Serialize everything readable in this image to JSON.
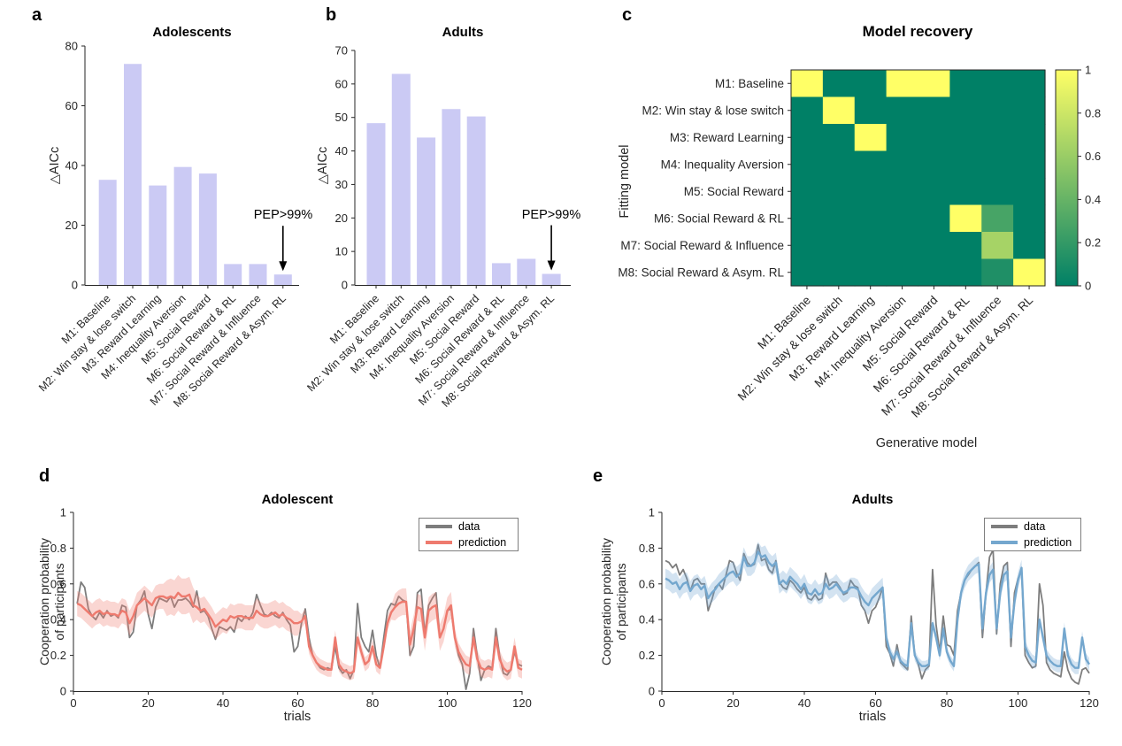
{
  "figure": {
    "panels": {
      "a": {
        "letter": "a"
      },
      "b": {
        "letter": "b"
      },
      "c": {
        "letter": "c"
      },
      "d": {
        "letter": "d"
      },
      "e": {
        "letter": "e"
      }
    },
    "colors": {
      "bar_fill": "#cbcaf4",
      "axis": "#262626",
      "data_gray": "#7d7d7d",
      "prediction_red": "#ee7a6e",
      "prediction_blue": "#74a7ce",
      "band_red": "rgba(240,130,118,0.33)",
      "band_blue": "rgba(120,170,212,0.33)",
      "heatmap_low": "#008066",
      "heatmap_high": "#ffff66"
    }
  },
  "chart_data": [
    {
      "id": "a",
      "type": "bar",
      "title": "Adolescents",
      "ylabel": "△AICc",
      "categories": [
        "M1: Baseline",
        "M2: Win stay & lose switch",
        "M3: Reward Learning",
        "M4: Inequality Aversion",
        "M5: Social Reward",
        "M6: Social Reward & RL",
        "M7: Social Reward & Influence",
        "M8: Social Reward & Asym. RL"
      ],
      "values": [
        35.2,
        74,
        33.3,
        39.5,
        37.3,
        7,
        7,
        3.5
      ],
      "ylim": [
        0,
        80
      ],
      "yticks": [
        0,
        20,
        40,
        60,
        80
      ],
      "bar_color": "#cbcaf4",
      "annotation": {
        "text": "PEP>99%",
        "target_index": 7
      }
    },
    {
      "id": "b",
      "type": "bar",
      "title": "Adults",
      "ylabel": "△AICc",
      "categories": [
        "M1: Baseline",
        "M2: Win stay & lose switch",
        "M3: Reward Learning",
        "M4: Inequality Aversion",
        "M5: Social Reward",
        "M6: Social Reward & RL",
        "M7: Social Reward & Influence",
        "M8: Social Reward & Asym. RL"
      ],
      "values": [
        48.3,
        63,
        44,
        52.5,
        50.3,
        6.5,
        7.8,
        3.3
      ],
      "ylim": [
        0,
        70
      ],
      "yticks": [
        0,
        10,
        20,
        30,
        40,
        50,
        60,
        70
      ],
      "bar_color": "#cbcaf4",
      "annotation": {
        "text": "PEP>99%",
        "target_index": 7
      }
    },
    {
      "id": "c",
      "type": "heatmap",
      "title": "Model recovery",
      "ylabel": "Fitting model",
      "xlabel": "Generative model",
      "rows": [
        "M1: Baseline",
        "M2: Win stay & lose switch",
        "M3: Reward Learning",
        "M4: Inequality Aversion",
        "M5: Social Reward",
        "M6: Social Reward & RL",
        "M7: Social Reward & Influence",
        "M8: Social Reward & Asym. RL"
      ],
      "cols": [
        "M1: Baseline",
        "M2: Win stay & lose switch",
        "M3: Reward Learning",
        "M4: Inequality Aversion",
        "M5: Social Reward",
        "M6: Social Reward & RL",
        "M7: Social Reward & Influence",
        "M8: Social Reward & Asym. RL"
      ],
      "matrix": [
        [
          1,
          0,
          0,
          1,
          1,
          0,
          0,
          0
        ],
        [
          0,
          1,
          0,
          0,
          0,
          0,
          0,
          0
        ],
        [
          0,
          0,
          1,
          0,
          0,
          0,
          0,
          0
        ],
        [
          0,
          0,
          0,
          0,
          0,
          0,
          0,
          0
        ],
        [
          0,
          0,
          0,
          0,
          0,
          0,
          0,
          0
        ],
        [
          0,
          0,
          0,
          0,
          0,
          1,
          0.28,
          0
        ],
        [
          0,
          0,
          0,
          0,
          0,
          0,
          0.65,
          0
        ],
        [
          0,
          0,
          0,
          0,
          0,
          0,
          0.12,
          1
        ]
      ],
      "colorbar": {
        "min": 0,
        "max": 1,
        "ticks": [
          0,
          0.2,
          0.4,
          0.6,
          0.8,
          1
        ],
        "colormap": "summer"
      }
    },
    {
      "id": "d",
      "type": "line",
      "title": "Adolescent",
      "xlabel": "trials",
      "ylabel": "Cooperation probability\nof participants",
      "xlim": [
        0,
        120
      ],
      "ylim": [
        0,
        1
      ],
      "xticks": [
        0,
        20,
        40,
        60,
        80,
        100,
        120
      ],
      "yticks": [
        0,
        0.2,
        0.4,
        0.6,
        0.8,
        1
      ],
      "x_start": 1,
      "x_step": 1,
      "series": [
        {
          "name": "data",
          "color": "#7d7d7d",
          "values": [
            0.49,
            0.61,
            0.58,
            0.46,
            0.42,
            0.4,
            0.44,
            0.41,
            0.45,
            0.42,
            0.43,
            0.41,
            0.48,
            0.47,
            0.3,
            0.33,
            0.48,
            0.51,
            0.56,
            0.43,
            0.35,
            0.47,
            0.52,
            0.51,
            0.5,
            0.53,
            0.47,
            0.51,
            0.51,
            0.52,
            0.5,
            0.47,
            0.56,
            0.44,
            0.45,
            0.42,
            0.35,
            0.29,
            0.36,
            0.35,
            0.34,
            0.36,
            0.33,
            0.41,
            0.39,
            0.42,
            0.4,
            0.44,
            0.54,
            0.48,
            0.43,
            0.42,
            0.44,
            0.42,
            0.41,
            0.44,
            0.4,
            0.37,
            0.22,
            0.25,
            0.38,
            0.46,
            0.3,
            0.2,
            0.16,
            0.13,
            0.12,
            0.13,
            0.12,
            0.25,
            0.13,
            0.1,
            0.12,
            0.07,
            0.12,
            0.49,
            0.3,
            0.25,
            0.22,
            0.34,
            0.2,
            0.13,
            0.3,
            0.45,
            0.49,
            0.48,
            0.53,
            0.51,
            0.5,
            0.2,
            0.25,
            0.55,
            0.57,
            0.32,
            0.48,
            0.52,
            0.55,
            0.3,
            0.35,
            0.45,
            0.46,
            0.3,
            0.2,
            0.15,
            0.01,
            0.1,
            0.35,
            0.2,
            0.06,
            0.12,
            0.14,
            0.13,
            0.35,
            0.2,
            0.1,
            0.09,
            0.12,
            0.22,
            0.15,
            0.14
          ]
        },
        {
          "name": "prediction",
          "color": "#ee7a6e",
          "values": [
            0.49,
            0.48,
            0.46,
            0.44,
            0.42,
            0.44,
            0.45,
            0.43,
            0.44,
            0.43,
            0.43,
            0.42,
            0.45,
            0.44,
            0.38,
            0.42,
            0.48,
            0.5,
            0.52,
            0.5,
            0.48,
            0.52,
            0.53,
            0.53,
            0.52,
            0.53,
            0.52,
            0.55,
            0.53,
            0.53,
            0.54,
            0.48,
            0.47,
            0.45,
            0.46,
            0.43,
            0.4,
            0.36,
            0.38,
            0.4,
            0.39,
            0.42,
            0.41,
            0.42,
            0.42,
            0.41,
            0.41,
            0.41,
            0.45,
            0.43,
            0.42,
            0.42,
            0.43,
            0.44,
            0.42,
            0.43,
            0.41,
            0.4,
            0.38,
            0.38,
            0.39,
            0.42,
            0.25,
            0.2,
            0.16,
            0.14,
            0.13,
            0.12,
            0.12,
            0.3,
            0.15,
            0.12,
            0.11,
            0.1,
            0.11,
            0.3,
            0.22,
            0.15,
            0.17,
            0.25,
            0.15,
            0.13,
            0.25,
            0.38,
            0.44,
            0.47,
            0.49,
            0.5,
            0.5,
            0.26,
            0.35,
            0.47,
            0.46,
            0.3,
            0.45,
            0.47,
            0.48,
            0.3,
            0.35,
            0.45,
            0.48,
            0.3,
            0.22,
            0.18,
            0.15,
            0.14,
            0.3,
            0.18,
            0.13,
            0.12,
            0.13,
            0.12,
            0.3,
            0.18,
            0.13,
            0.11,
            0.12,
            0.25,
            0.13,
            0.12
          ]
        }
      ],
      "band": {
        "around": "prediction",
        "color": "rgba(240,130,118,0.33)",
        "halfwidth_segments": [
          [
            1,
            24,
            0.07
          ],
          [
            25,
            32,
            0.1
          ],
          [
            33,
            60,
            0.07
          ],
          [
            61,
            85,
            0.04
          ],
          [
            86,
            101,
            0.075
          ],
          [
            102,
            120,
            0.05
          ]
        ]
      }
    },
    {
      "id": "e",
      "type": "line",
      "title": "Adults",
      "xlabel": "trials",
      "ylabel": "Cooperation probability\nof participants",
      "xlim": [
        0,
        120
      ],
      "ylim": [
        0,
        1
      ],
      "xticks": [
        0,
        20,
        40,
        60,
        80,
        100,
        120
      ],
      "yticks": [
        0,
        0.2,
        0.4,
        0.6,
        0.8,
        1
      ],
      "x_start": 1,
      "x_step": 1,
      "series": [
        {
          "name": "data",
          "color": "#7d7d7d",
          "values": [
            0.73,
            0.72,
            0.69,
            0.71,
            0.65,
            0.68,
            0.63,
            0.56,
            0.62,
            0.63,
            0.6,
            0.6,
            0.45,
            0.51,
            0.58,
            0.6,
            0.57,
            0.65,
            0.73,
            0.72,
            0.66,
            0.62,
            0.77,
            0.72,
            0.7,
            0.71,
            0.82,
            0.73,
            0.74,
            0.68,
            0.66,
            0.73,
            0.61,
            0.58,
            0.57,
            0.62,
            0.6,
            0.57,
            0.55,
            0.58,
            0.52,
            0.51,
            0.54,
            0.51,
            0.52,
            0.66,
            0.59,
            0.61,
            0.61,
            0.58,
            0.54,
            0.55,
            0.62,
            0.59,
            0.58,
            0.48,
            0.45,
            0.38,
            0.45,
            0.47,
            0.52,
            0.58,
            0.25,
            0.21,
            0.14,
            0.26,
            0.16,
            0.14,
            0.12,
            0.42,
            0.2,
            0.15,
            0.07,
            0.12,
            0.14,
            0.68,
            0.37,
            0.22,
            0.42,
            0.26,
            0.25,
            0.2,
            0.45,
            0.55,
            0.62,
            0.65,
            0.68,
            0.7,
            0.72,
            0.3,
            0.55,
            0.75,
            0.79,
            0.32,
            0.6,
            0.7,
            0.72,
            0.25,
            0.55,
            0.63,
            0.68,
            0.2,
            0.16,
            0.13,
            0.14,
            0.6,
            0.48,
            0.16,
            0.12,
            0.1,
            0.09,
            0.08,
            0.22,
            0.12,
            0.07,
            0.05,
            0.04,
            0.12,
            0.13,
            0.1
          ]
        },
        {
          "name": "prediction",
          "color": "#74a7ce",
          "values": [
            0.63,
            0.62,
            0.6,
            0.61,
            0.57,
            0.6,
            0.61,
            0.56,
            0.59,
            0.6,
            0.57,
            0.59,
            0.52,
            0.55,
            0.57,
            0.6,
            0.62,
            0.64,
            0.66,
            0.67,
            0.64,
            0.66,
            0.75,
            0.7,
            0.7,
            0.72,
            0.78,
            0.75,
            0.76,
            0.72,
            0.7,
            0.72,
            0.6,
            0.62,
            0.6,
            0.64,
            0.62,
            0.6,
            0.57,
            0.6,
            0.55,
            0.54,
            0.57,
            0.54,
            0.55,
            0.6,
            0.57,
            0.58,
            0.6,
            0.57,
            0.55,
            0.56,
            0.58,
            0.58,
            0.57,
            0.53,
            0.5,
            0.48,
            0.52,
            0.54,
            0.56,
            0.58,
            0.3,
            0.22,
            0.18,
            0.22,
            0.17,
            0.15,
            0.14,
            0.38,
            0.2,
            0.16,
            0.14,
            0.14,
            0.15,
            0.38,
            0.3,
            0.2,
            0.35,
            0.22,
            0.17,
            0.14,
            0.4,
            0.55,
            0.62,
            0.66,
            0.68,
            0.7,
            0.71,
            0.35,
            0.55,
            0.65,
            0.68,
            0.35,
            0.55,
            0.65,
            0.67,
            0.3,
            0.5,
            0.62,
            0.69,
            0.25,
            0.2,
            0.17,
            0.16,
            0.4,
            0.3,
            0.2,
            0.17,
            0.15,
            0.14,
            0.14,
            0.35,
            0.2,
            0.15,
            0.13,
            0.13,
            0.3,
            0.18,
            0.15
          ]
        }
      ],
      "band": {
        "around": "prediction",
        "color": "rgba(120,170,212,0.33)",
        "halfwidth_segments": [
          [
            1,
            62,
            0.055
          ],
          [
            63,
            82,
            0.03
          ],
          [
            83,
            101,
            0.045
          ],
          [
            102,
            120,
            0.035
          ]
        ]
      }
    }
  ]
}
